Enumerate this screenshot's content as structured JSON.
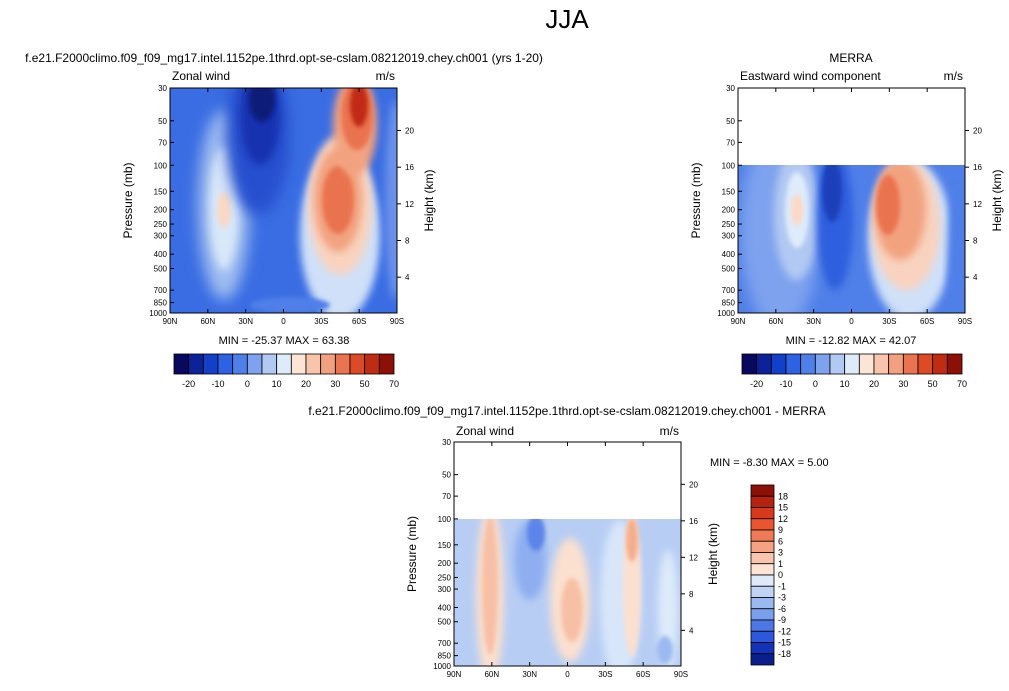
{
  "main_title": "JJA",
  "panels": [
    {
      "id": "model",
      "title": "f.e21.F2000climo.f09_f09_mg17.intel.1152pe.1thrd.opt-se-cslam.08212019.chey.ch001 (yrs 1-20)",
      "left_label": "Zonal wind",
      "right_label": "m/s",
      "stats": "MIN = -25.37  MAX = 63.38"
    },
    {
      "id": "obs",
      "title": "MERRA",
      "left_label": "Eastward wind component",
      "right_label": "m/s",
      "stats": "MIN = -12.82  MAX = 42.07"
    },
    {
      "id": "diff",
      "title": "f.e21.F2000climo.f09_f09_mg17.intel.1152pe.1thrd.opt-se-cslam.08212019.chey.ch001 - MERRA",
      "left_label": "Zonal wind",
      "right_label": "m/s",
      "stats": "MIN = -8.30  MAX =   5.00"
    }
  ],
  "axes": {
    "ylabel": "Pressure (mb)",
    "y2label": "Height (km)",
    "pressure_ticks": [
      "30",
      "50",
      "70",
      "100",
      "150",
      "200",
      "250",
      "300",
      "400",
      "500",
      "700",
      "850",
      "1000"
    ],
    "height_ticks": [
      "20",
      "16",
      "12",
      "8",
      "4"
    ],
    "lat_ticks": [
      "90N",
      "60N",
      "30N",
      "0",
      "30S",
      "60S",
      "90S"
    ]
  },
  "colorbars": {
    "full": {
      "labels": [
        "-20",
        "-10",
        "0",
        "10",
        "20",
        "30",
        "50",
        "70"
      ],
      "colors": [
        "#08085e",
        "#0b2298",
        "#1240c8",
        "#2e62e4",
        "#4f7fe8",
        "#7ea2ee",
        "#b2c9f3",
        "#deebfa",
        "#fde5d6",
        "#f8c5ac",
        "#f2a080",
        "#ea7350",
        "#dd4a26",
        "#c02c12",
        "#8c1008"
      ]
    },
    "diff": {
      "labels": [
        "18",
        "15",
        "12",
        "9",
        "6",
        "3",
        "1",
        "0",
        "-1",
        "-3",
        "-6",
        "-9",
        "-12",
        "-15",
        "-18"
      ],
      "colors": [
        "#8c1008",
        "#b5230f",
        "#d8391c",
        "#ea5530",
        "#f07a55",
        "#f5a283",
        "#f9c4ad",
        "#fde3d3",
        "#deeafa",
        "#bfd3f4",
        "#9ab9f0",
        "#7a9fec",
        "#4d77e6",
        "#2e58dc",
        "#1234b8",
        "#0a1f8c"
      ]
    }
  },
  "chart_data": [
    {
      "type": "heatmap",
      "name_id": "model",
      "x_label_ticks": [
        "90N",
        "60N",
        "30N",
        "0",
        "30S",
        "60S",
        "90S"
      ],
      "x_values_deg": [
        90,
        60,
        30,
        0,
        -30,
        -60,
        -90
      ],
      "y_pressure_range_mb": [
        1000,
        30
      ],
      "y_log_scale": true,
      "data_pressure_top_mb": 30,
      "value_range": [
        -25.37,
        63.38
      ],
      "contour_levels": [
        -20,
        -15,
        -10,
        -5,
        0,
        5,
        10,
        15,
        20,
        25,
        30,
        40,
        50,
        60,
        70
      ],
      "features": [
        {
          "kind": "easterly_jet",
          "lat": 22,
          "pressure_mb": 35,
          "value": -25
        },
        {
          "kind": "subtropical_max",
          "lat": 45,
          "pressure_mb": 200,
          "value": 20
        },
        {
          "kind": "westerly_jet",
          "lat": -45,
          "pressure_mb": 200,
          "value": 45
        },
        {
          "kind": "westerly_jet_upper",
          "lat": -62,
          "pressure_mb": 35,
          "value": 63
        }
      ]
    },
    {
      "type": "heatmap",
      "name_id": "obs",
      "x_label_ticks": [
        "90N",
        "60N",
        "30N",
        "0",
        "30S",
        "60S",
        "90S"
      ],
      "x_values_deg": [
        90,
        60,
        30,
        0,
        -30,
        -60,
        -90
      ],
      "y_pressure_range_mb": [
        1000,
        30
      ],
      "y_log_scale": true,
      "data_pressure_top_mb": 100,
      "value_range": [
        -12.82,
        42.07
      ],
      "contour_levels": [
        -20,
        -15,
        -10,
        -5,
        0,
        5,
        10,
        15,
        20,
        25,
        30,
        40,
        50,
        60,
        70
      ],
      "features": [
        {
          "kind": "subtropical_max",
          "lat": 45,
          "pressure_mb": 200,
          "value": 18
        },
        {
          "kind": "easterly",
          "lat": 15,
          "pressure_mb": 120,
          "value": -12
        },
        {
          "kind": "westerly_jet",
          "lat": -35,
          "pressure_mb": 200,
          "value": 42
        }
      ]
    },
    {
      "type": "heatmap",
      "name_id": "diff",
      "x_label_ticks": [
        "90N",
        "60N",
        "30N",
        "0",
        "30S",
        "60S",
        "90S"
      ],
      "x_values_deg": [
        90,
        60,
        30,
        0,
        -30,
        -60,
        -90
      ],
      "y_pressure_range_mb": [
        1000,
        30
      ],
      "y_log_scale": true,
      "data_pressure_top_mb": 100,
      "value_range": [
        -8.3,
        5.0
      ],
      "contour_levels": [
        -18,
        -15,
        -12,
        -9,
        -6,
        -3,
        -1,
        0,
        1,
        3,
        6,
        9,
        12,
        15,
        18
      ],
      "features": [
        {
          "kind": "positive_band",
          "lat": 55,
          "pressure_mb": 300,
          "value": 3
        },
        {
          "kind": "negative_core",
          "lat": 25,
          "pressure_mb": 120,
          "value": -8
        },
        {
          "kind": "positive_band",
          "lat": 5,
          "pressure_mb": 300,
          "value": 3
        },
        {
          "kind": "positive_band",
          "lat": -42,
          "pressure_mb": 250,
          "value": 3
        },
        {
          "kind": "positive_core",
          "lat": -45,
          "pressure_mb": 120,
          "value": 5
        }
      ]
    }
  ]
}
